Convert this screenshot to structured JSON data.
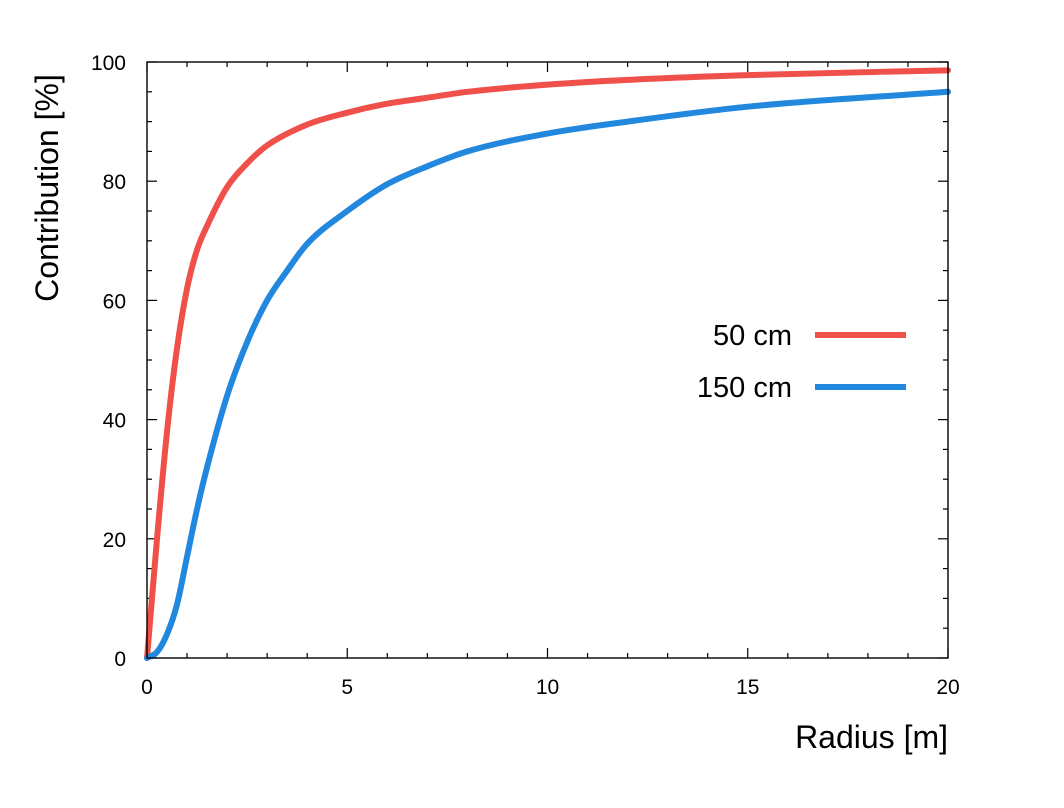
{
  "chart_data": {
    "type": "line",
    "xlabel": "Radius [m]",
    "ylabel": "Contribution [%]",
    "xlim": [
      0,
      20
    ],
    "ylim": [
      0,
      100
    ],
    "x_ticks": [
      0,
      5,
      10,
      15,
      20
    ],
    "y_ticks": [
      0,
      20,
      40,
      60,
      80,
      100
    ],
    "x_minor_step": 1,
    "y_minor_step": 5,
    "grid": false,
    "legend_position": "right",
    "series": [
      {
        "name": "50 cm",
        "color": "#f0504a",
        "x": [
          0,
          0.25,
          0.5,
          0.75,
          1,
          1.25,
          1.5,
          2,
          2.5,
          3,
          4,
          5,
          6,
          7,
          8,
          10,
          12,
          15,
          20
        ],
        "y": [
          0,
          20,
          38,
          52,
          62,
          68.5,
          72.5,
          79,
          83,
          86,
          89.5,
          91.5,
          93,
          94,
          95,
          96.2,
          97,
          97.8,
          98.6
        ]
      },
      {
        "name": "150 cm",
        "color": "#2288dd",
        "x": [
          0,
          0.25,
          0.5,
          0.75,
          1,
          1.25,
          1.5,
          2,
          2.5,
          3,
          3.5,
          4,
          5,
          6,
          7,
          8,
          10,
          12,
          15,
          20
        ],
        "y": [
          0,
          1,
          4,
          9,
          17,
          25,
          32,
          44,
          53,
          60,
          65,
          69.5,
          75,
          79.5,
          82.5,
          85,
          88,
          90,
          92.5,
          95
        ]
      }
    ]
  }
}
